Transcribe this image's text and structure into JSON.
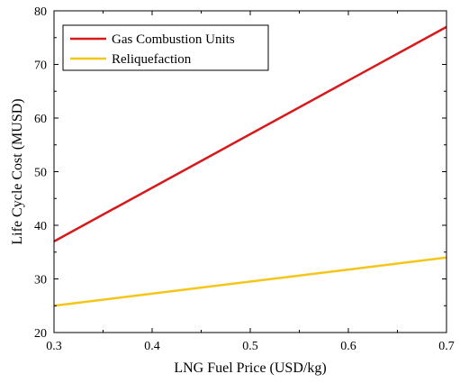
{
  "chart_data": {
    "type": "line",
    "title": "",
    "xlabel": "LNG Fuel Price (USD/kg)",
    "ylabel": "Life Cycle Cost (MUSD)",
    "xlim": [
      0.3,
      0.7
    ],
    "ylim": [
      20,
      80
    ],
    "xticks": [
      0.3,
      0.4,
      0.5,
      0.6,
      0.7
    ],
    "xtick_labels": [
      "0.3",
      "0.4",
      "0.5",
      "0.6",
      "0.7"
    ],
    "yticks": [
      20,
      30,
      40,
      50,
      60,
      70,
      80
    ],
    "ytick_labels": [
      "20",
      "30",
      "40",
      "50",
      "60",
      "70",
      "80"
    ],
    "grid": false,
    "legend_position": "top-left",
    "series": [
      {
        "name": "Gas Combustion Units",
        "color": "#d7191c",
        "x": [
          0.3,
          0.7
        ],
        "y": [
          37,
          77
        ]
      },
      {
        "name": "Reliquefaction",
        "color": "#f5c518",
        "x": [
          0.3,
          0.7
        ],
        "y": [
          25,
          34
        ]
      }
    ]
  }
}
